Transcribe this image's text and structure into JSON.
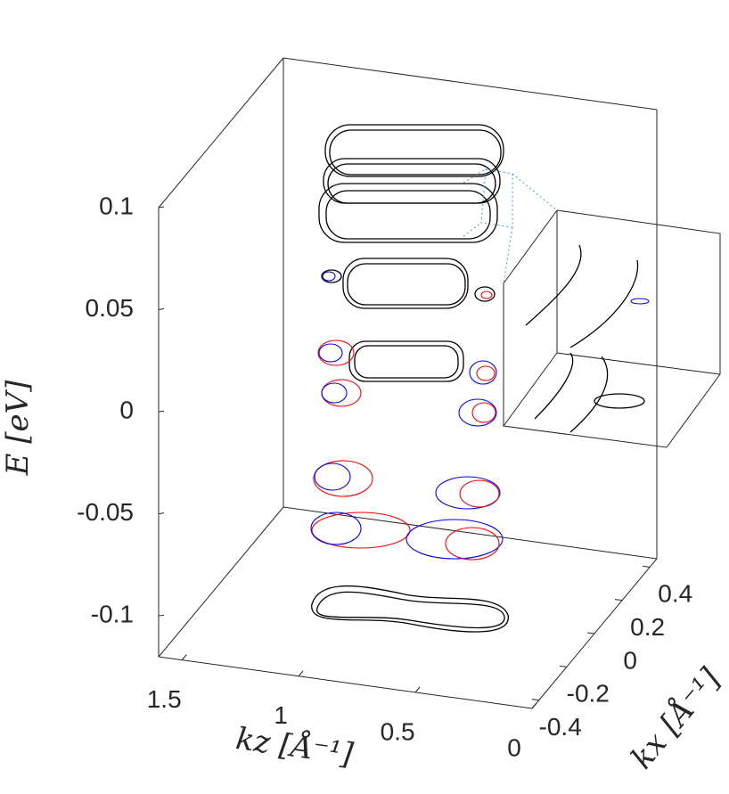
{
  "chart_data": {
    "type": "contour3d",
    "zlabel": "E [eV]",
    "xlabel": "kz [Å⁻¹]",
    "ylabel": "kx [Å⁻¹]",
    "xlim": [
      1.6,
      0
    ],
    "xticks": [
      1.5,
      1,
      0.5,
      0
    ],
    "ylim": [
      -0.45,
      0.45
    ],
    "yticks": [
      -0.4,
      -0.2,
      0,
      0.2,
      0.4
    ],
    "zlim": [
      -0.12,
      0.1
    ],
    "zticks": [
      -0.1,
      -0.05,
      0,
      0.05,
      0.1
    ],
    "colors": [
      "#000000",
      "#ff0000",
      "#0000ff"
    ]
  }
}
